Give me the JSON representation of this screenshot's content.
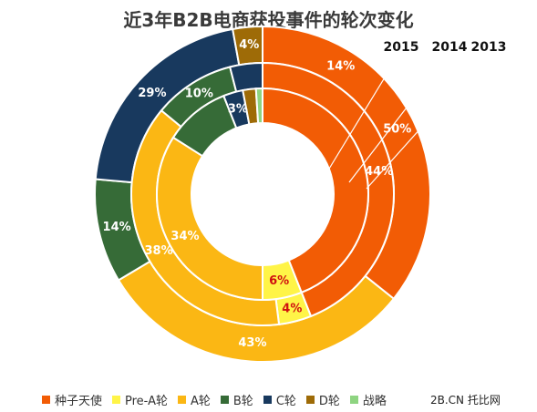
{
  "chart_data": {
    "type": "pie",
    "title": "近3年B2B电商获投事件的轮次变化",
    "categories": [
      "种子天使",
      "Pre-A轮",
      "A轮",
      "B轮",
      "C轮",
      "D轮",
      "战略"
    ],
    "colors": [
      "#f25c05",
      "#fff447",
      "#fbb714",
      "#366b37",
      "#18395e",
      "#9e6b07",
      "#8ed481"
    ],
    "series": [
      {
        "name": "2013",
        "values": [
          50,
          0,
          43,
          14,
          29,
          4,
          0
        ],
        "labels": [
          "50%",
          "",
          "43%",
          "14%",
          "29%",
          "4%",
          ""
        ]
      },
      {
        "name": "2014",
        "values": [
          44,
          4,
          38,
          10,
          4,
          0,
          0
        ],
        "labels": [
          "44%",
          "4%",
          "38%",
          "10%",
          "",
          "",
          ""
        ]
      },
      {
        "name": "2015",
        "values": [
          44,
          6,
          34,
          10,
          3,
          2,
          1
        ],
        "labels": [
          "",
          "6%",
          "34%",
          "",
          "3%",
          "",
          ""
        ]
      }
    ],
    "outer_extra_label": "14%",
    "year_labels": [
      "2015",
      "2014",
      "2013"
    ]
  },
  "watermark": "2B.CN 托比网"
}
